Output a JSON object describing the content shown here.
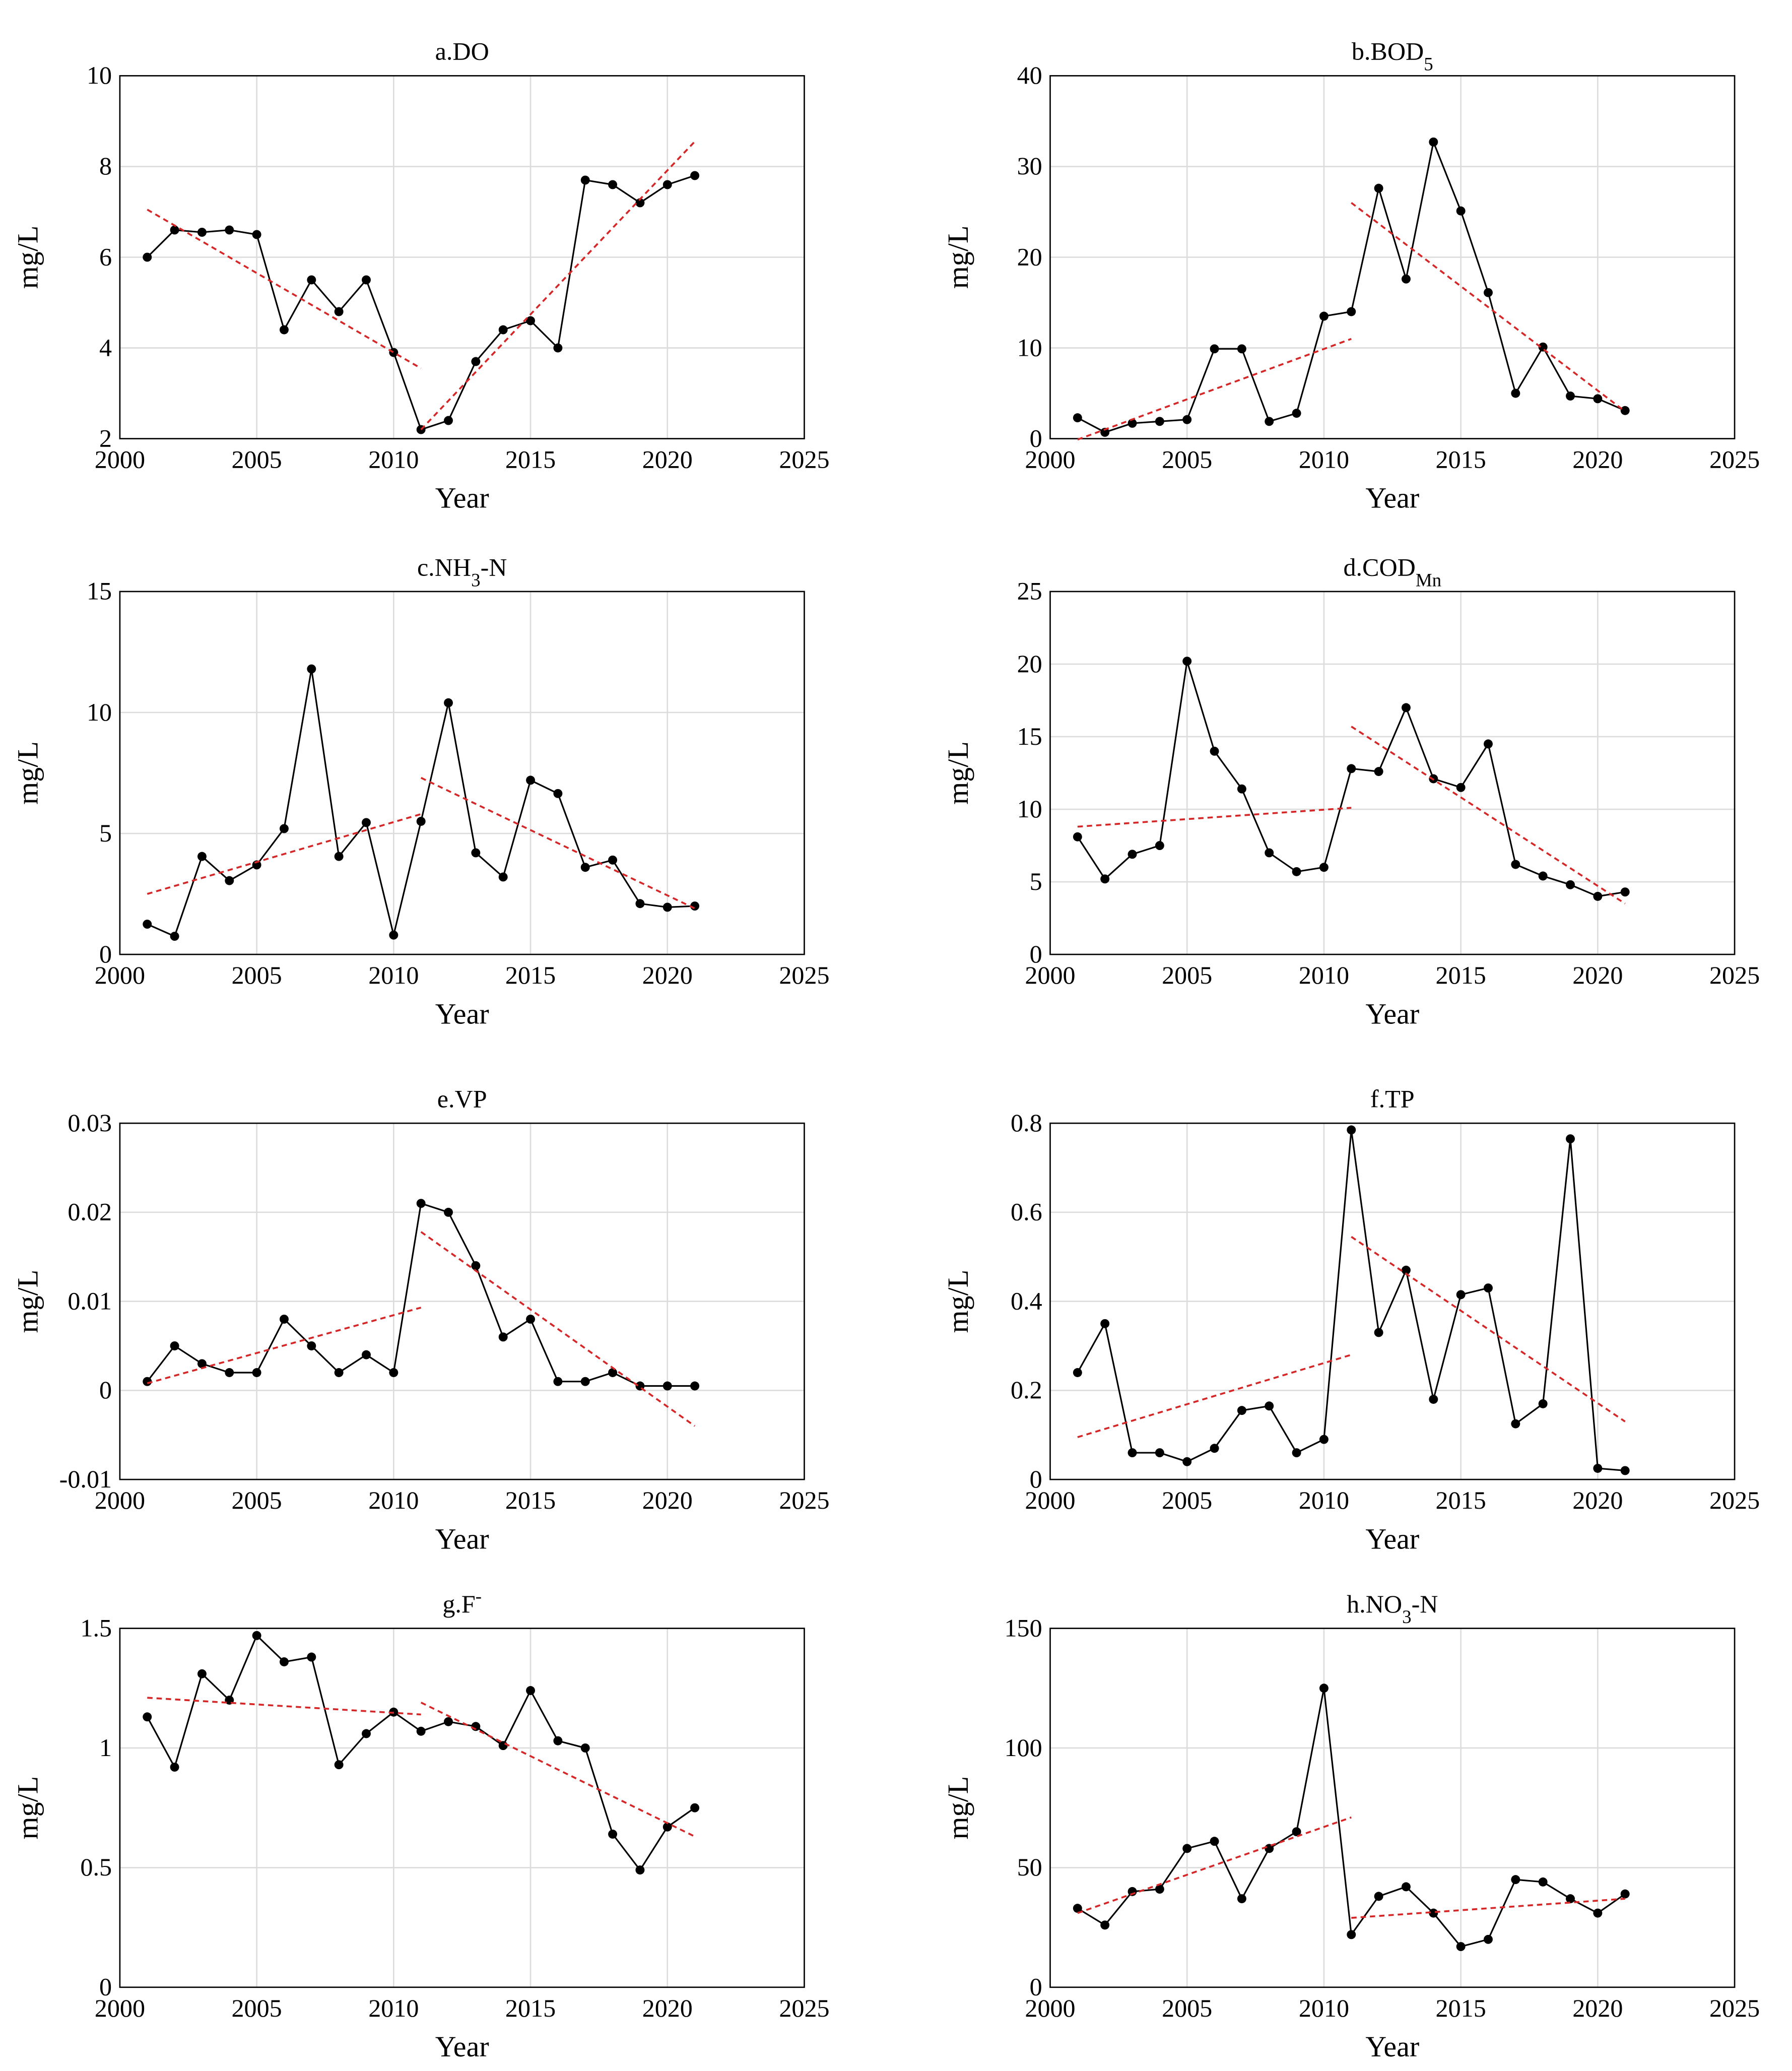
{
  "chart_data": [
    {
      "type": "line",
      "title": [
        {
          "text": "a.DO"
        }
      ],
      "xlabel": "Year",
      "ylabel": "mg/L",
      "x": [
        2001,
        2002,
        2003,
        2004,
        2005,
        2006,
        2007,
        2008,
        2009,
        2010,
        2011,
        2012,
        2013,
        2014,
        2015,
        2016,
        2017,
        2018,
        2019,
        2020,
        2021
      ],
      "xlim": [
        2000,
        2025
      ],
      "xticks": [
        2000,
        2005,
        2010,
        2015,
        2020,
        2025
      ],
      "ylim": [
        2,
        10
      ],
      "yticks": [
        2,
        4,
        6,
        8,
        10
      ],
      "grid": true,
      "series": [
        {
          "color": "#000000",
          "markers": true,
          "values": [
            6.0,
            6.6,
            6.55,
            6.6,
            6.5,
            4.4,
            5.5,
            4.8,
            5.5,
            3.9,
            2.2,
            2.4,
            3.7,
            4.4,
            4.6,
            4.0,
            7.7,
            7.6,
            7.2,
            7.6,
            7.8
          ]
        },
        {
          "color": "#d62728",
          "dashed": true,
          "x": [
            2001,
            2011
          ],
          "values": [
            7.05,
            3.55
          ]
        },
        {
          "color": "#d62728",
          "dashed": true,
          "x": [
            2011,
            2021
          ],
          "values": [
            2.2,
            8.55
          ]
        }
      ]
    },
    {
      "type": "line",
      "title": [
        {
          "text": "b.BOD"
        },
        {
          "text": "5",
          "sub": true
        }
      ],
      "xlabel": "Year",
      "ylabel": "mg/L",
      "x": [
        2001,
        2002,
        2003,
        2004,
        2005,
        2006,
        2007,
        2008,
        2009,
        2010,
        2011,
        2012,
        2013,
        2014,
        2015,
        2016,
        2017,
        2018,
        2019,
        2020,
        2021
      ],
      "xlim": [
        2000,
        2025
      ],
      "xticks": [
        2000,
        2005,
        2010,
        2015,
        2020,
        2025
      ],
      "ylim": [
        0,
        40
      ],
      "yticks": [
        0,
        10,
        20,
        30,
        40
      ],
      "grid": true,
      "series": [
        {
          "color": "#000000",
          "markers": true,
          "values": [
            2.3,
            0.7,
            1.7,
            1.9,
            2.1,
            9.9,
            9.9,
            1.9,
            2.8,
            13.5,
            14,
            27.6,
            17.6,
            32.7,
            25.1,
            16.1,
            5.0,
            10.1,
            4.7,
            4.4,
            3.1
          ]
        },
        {
          "color": "#d62728",
          "dashed": true,
          "x": [
            2001,
            2011
          ],
          "values": [
            -0.1,
            11
          ]
        },
        {
          "color": "#d62728",
          "dashed": true,
          "x": [
            2011,
            2021
          ],
          "values": [
            26,
            3
          ]
        }
      ]
    },
    {
      "type": "line",
      "title": [
        {
          "text": "c.NH"
        },
        {
          "text": "3",
          "sub": true
        },
        {
          "text": "-N"
        }
      ],
      "xlabel": "Year",
      "ylabel": "mg/L",
      "x": [
        2001,
        2002,
        2003,
        2004,
        2005,
        2006,
        2007,
        2008,
        2009,
        2010,
        2011,
        2012,
        2013,
        2014,
        2015,
        2016,
        2017,
        2018,
        2019,
        2020,
        2021
      ],
      "xlim": [
        2000,
        2025
      ],
      "xticks": [
        2000,
        2005,
        2010,
        2015,
        2020,
        2025
      ],
      "ylim": [
        0,
        15
      ],
      "yticks": [
        0,
        5,
        10,
        15
      ],
      "grid": true,
      "series": [
        {
          "color": "#000000",
          "markers": true,
          "values": [
            1.25,
            0.75,
            4.05,
            3.05,
            3.7,
            5.2,
            11.8,
            4.05,
            5.45,
            0.8,
            5.5,
            10.4,
            4.2,
            3.2,
            7.2,
            6.65,
            3.6,
            3.9,
            2.1,
            1.95,
            2.0
          ]
        },
        {
          "color": "#d62728",
          "dashed": true,
          "x": [
            2001,
            2011
          ],
          "values": [
            2.5,
            5.8
          ]
        },
        {
          "color": "#d62728",
          "dashed": true,
          "x": [
            2011,
            2021
          ],
          "values": [
            7.3,
            1.9
          ]
        }
      ]
    },
    {
      "type": "line",
      "title": [
        {
          "text": "d.COD"
        },
        {
          "text": "Mn",
          "sub": true
        }
      ],
      "xlabel": "Year",
      "ylabel": "mg/L",
      "x": [
        2001,
        2002,
        2003,
        2004,
        2005,
        2006,
        2007,
        2008,
        2009,
        2010,
        2011,
        2012,
        2013,
        2014,
        2015,
        2016,
        2017,
        2018,
        2019,
        2020,
        2021
      ],
      "xlim": [
        2000,
        2025
      ],
      "xticks": [
        2000,
        2005,
        2010,
        2015,
        2020,
        2025
      ],
      "ylim": [
        0,
        25
      ],
      "yticks": [
        0,
        5,
        10,
        15,
        20,
        25
      ],
      "grid": true,
      "series": [
        {
          "color": "#000000",
          "markers": true,
          "values": [
            8.1,
            5.2,
            6.9,
            7.5,
            20.2,
            14.0,
            11.4,
            7.0,
            5.7,
            6.0,
            12.8,
            12.6,
            17.0,
            12.1,
            11.5,
            14.5,
            6.2,
            5.4,
            4.8,
            4.0,
            4.3
          ]
        },
        {
          "color": "#d62728",
          "dashed": true,
          "x": [
            2001,
            2011
          ],
          "values": [
            8.8,
            10.1
          ]
        },
        {
          "color": "#d62728",
          "dashed": true,
          "x": [
            2011,
            2021
          ],
          "values": [
            15.7,
            3.5
          ]
        }
      ]
    },
    {
      "type": "line",
      "title": [
        {
          "text": "e.VP"
        }
      ],
      "xlabel": "Year",
      "ylabel": "mg/L",
      "x": [
        2001,
        2002,
        2003,
        2004,
        2005,
        2006,
        2007,
        2008,
        2009,
        2010,
        2011,
        2012,
        2013,
        2014,
        2015,
        2016,
        2017,
        2018,
        2019,
        2020,
        2021
      ],
      "xlim": [
        2000,
        2025
      ],
      "xticks": [
        2000,
        2005,
        2010,
        2015,
        2020,
        2025
      ],
      "ylim": [
        -0.01,
        0.03
      ],
      "yticks": [
        -0.01,
        0,
        0.01,
        0.02,
        0.03
      ],
      "grid": true,
      "series": [
        {
          "color": "#000000",
          "markers": true,
          "values": [
            0.001,
            0.005,
            0.003,
            0.002,
            0.002,
            0.008,
            0.005,
            0.002,
            0.004,
            0.002,
            0.021,
            0.02,
            0.014,
            0.006,
            0.008,
            0.001,
            0.001,
            0.002,
            0.0005,
            0.0005,
            0.0005
          ]
        },
        {
          "color": "#d62728",
          "dashed": true,
          "x": [
            2001,
            2011
          ],
          "values": [
            0.0008,
            0.0093
          ]
        },
        {
          "color": "#d62728",
          "dashed": true,
          "x": [
            2011,
            2021
          ],
          "values": [
            0.0178,
            -0.004
          ]
        }
      ]
    },
    {
      "type": "line",
      "title": [
        {
          "text": "f.TP"
        }
      ],
      "xlabel": "Year",
      "ylabel": "mg/L",
      "x": [
        2001,
        2002,
        2003,
        2004,
        2005,
        2006,
        2007,
        2008,
        2009,
        2010,
        2011,
        2012,
        2013,
        2014,
        2015,
        2016,
        2017,
        2018,
        2019,
        2020,
        2021
      ],
      "xlim": [
        2000,
        2025
      ],
      "xticks": [
        2000,
        2005,
        2010,
        2015,
        2020,
        2025
      ],
      "ylim": [
        0,
        0.8
      ],
      "yticks": [
        0,
        0.2,
        0.4,
        0.6,
        0.8
      ],
      "grid": true,
      "series": [
        {
          "color": "#000000",
          "markers": true,
          "values": [
            0.24,
            0.35,
            0.06,
            0.06,
            0.04,
            0.07,
            0.155,
            0.165,
            0.06,
            0.09,
            0.785,
            0.33,
            0.47,
            0.18,
            0.415,
            0.43,
            0.125,
            0.17,
            0.765,
            0.025,
            0.02
          ]
        },
        {
          "color": "#d62728",
          "dashed": true,
          "x": [
            2001,
            2011
          ],
          "values": [
            0.095,
            0.28
          ]
        },
        {
          "color": "#d62728",
          "dashed": true,
          "x": [
            2011,
            2021
          ],
          "values": [
            0.545,
            0.13
          ]
        }
      ]
    },
    {
      "type": "line",
      "title": [
        {
          "text": "g.F"
        },
        {
          "text": "-",
          "sup": true
        }
      ],
      "xlabel": "Year",
      "ylabel": "mg/L",
      "x": [
        2001,
        2002,
        2003,
        2004,
        2005,
        2006,
        2007,
        2008,
        2009,
        2010,
        2011,
        2012,
        2013,
        2014,
        2015,
        2016,
        2017,
        2018,
        2019,
        2020,
        2021
      ],
      "xlim": [
        2000,
        2025
      ],
      "xticks": [
        2000,
        2005,
        2010,
        2015,
        2020,
        2025
      ],
      "ylim": [
        0,
        1.5
      ],
      "yticks": [
        0,
        0.5,
        1,
        1.5
      ],
      "grid": true,
      "series": [
        {
          "color": "#000000",
          "markers": true,
          "values": [
            1.13,
            0.92,
            1.31,
            1.2,
            1.47,
            1.36,
            1.38,
            0.93,
            1.06,
            1.15,
            1.07,
            1.11,
            1.09,
            1.01,
            1.24,
            1.03,
            1.0,
            0.64,
            0.49,
            0.67,
            0.75
          ]
        },
        {
          "color": "#d62728",
          "dashed": true,
          "x": [
            2001,
            2011
          ],
          "values": [
            1.21,
            1.14
          ]
        },
        {
          "color": "#d62728",
          "dashed": true,
          "x": [
            2011,
            2021
          ],
          "values": [
            1.19,
            0.63
          ]
        }
      ]
    },
    {
      "type": "line",
      "title": [
        {
          "text": "h.NO"
        },
        {
          "text": "3",
          "sub": true
        },
        {
          "text": "-N"
        }
      ],
      "xlabel": "Year",
      "ylabel": "mg/L",
      "x": [
        2001,
        2002,
        2003,
        2004,
        2005,
        2006,
        2007,
        2008,
        2009,
        2010,
        2011,
        2012,
        2013,
        2014,
        2015,
        2016,
        2017,
        2018,
        2019,
        2020,
        2021
      ],
      "xlim": [
        2000,
        2025
      ],
      "xticks": [
        2000,
        2005,
        2010,
        2015,
        2020,
        2025
      ],
      "ylim": [
        0,
        150
      ],
      "yticks": [
        0,
        50,
        100,
        150
      ],
      "grid": true,
      "series": [
        {
          "color": "#000000",
          "markers": true,
          "values": [
            33,
            26,
            40,
            41,
            58,
            61,
            37,
            58,
            65,
            125,
            22,
            38,
            42,
            31,
            17,
            20,
            45,
            44,
            37,
            31,
            39
          ]
        },
        {
          "color": "#d62728",
          "dashed": true,
          "x": [
            2001,
            2011
          ],
          "values": [
            31,
            71
          ]
        },
        {
          "color": "#d62728",
          "dashed": true,
          "x": [
            2011,
            2021
          ],
          "values": [
            29,
            37
          ]
        }
      ]
    }
  ]
}
